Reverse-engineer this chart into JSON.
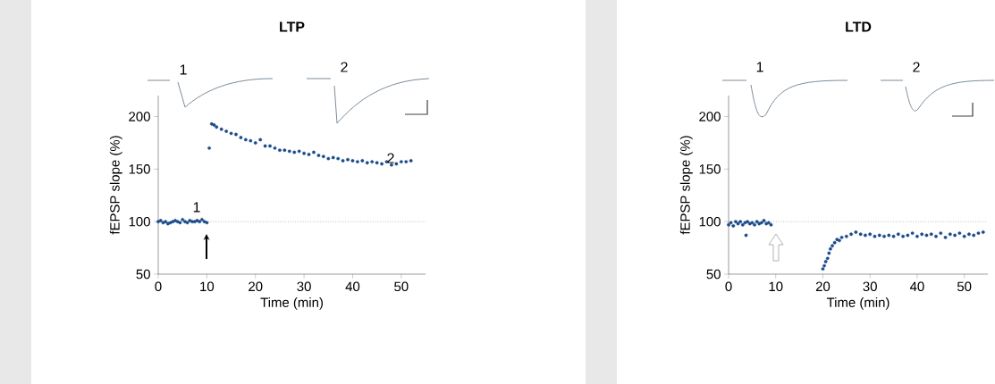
{
  "chart_data": [
    {
      "type": "scatter",
      "title": "LTP",
      "xlabel": "Time (min)",
      "ylabel": "fEPSP slope (%)",
      "marker": "circle",
      "xlim": [
        0,
        55
      ],
      "ylim": [
        50,
        220
      ],
      "xticks": [
        0,
        10,
        20,
        30,
        40,
        50
      ],
      "yticks": [
        50,
        100,
        150,
        200
      ],
      "ref_lines": [
        {
          "axis": "y",
          "value": 100,
          "color": "#999999",
          "line_style": "dotted"
        }
      ],
      "annotations": [
        "1",
        "2",
        "1",
        "2"
      ],
      "series": [
        {
          "color": "#1a4a8a",
          "x": [
            0,
            0.5,
            1,
            1.5,
            2,
            2.5,
            3,
            3.5,
            4,
            4.5,
            5,
            5.5,
            6,
            6.5,
            7,
            7.5,
            8,
            8.5,
            9,
            9.5,
            10,
            10.5,
            11,
            11.5,
            12,
            13,
            14,
            15,
            16,
            17,
            18,
            19,
            20,
            21,
            22,
            23,
            24,
            25,
            26,
            27,
            28,
            29,
            30,
            31,
            32,
            33,
            34,
            35,
            36,
            37,
            38,
            39,
            40,
            41,
            42,
            43,
            44,
            45,
            46,
            47,
            48,
            49,
            50,
            51,
            52
          ],
          "values": [
            100,
            101,
            99,
            100,
            98,
            99,
            100,
            101,
            100,
            99,
            102,
            100,
            99,
            101,
            100,
            100,
            101,
            100,
            102,
            100,
            99,
            170,
            193,
            192,
            190,
            188,
            186,
            184,
            183,
            180,
            178,
            177,
            175,
            178,
            172,
            172,
            170,
            168,
            168,
            167,
            166,
            167,
            165,
            164,
            166,
            163,
            162,
            160,
            161,
            160,
            158,
            159,
            158,
            157,
            158,
            156,
            157,
            156,
            155,
            157,
            154,
            155,
            157,
            157,
            158
          ]
        }
      ]
    },
    {
      "type": "scatter",
      "title": "LTD",
      "xlabel": "Time (min)",
      "ylabel": "fEPSP slope (%)",
      "marker": "circle",
      "xlim": [
        0,
        55
      ],
      "ylim": [
        50,
        220
      ],
      "xticks": [
        0,
        10,
        20,
        30,
        40,
        50
      ],
      "yticks": [
        50,
        100,
        150,
        200
      ],
      "ref_lines": [
        {
          "axis": "y",
          "value": 100,
          "color": "#999999",
          "line_style": "dotted"
        }
      ],
      "annotations": [
        "1",
        "2"
      ],
      "series": [
        {
          "color": "#1a4a8a",
          "x": [
            0,
            0.5,
            1,
            1.5,
            2,
            2.5,
            3,
            3.5,
            3.7,
            4,
            4.5,
            5,
            5.5,
            6,
            6.5,
            7,
            7.5,
            8,
            8.5,
            9,
            20,
            20.3,
            20.6,
            21,
            21.3,
            21.6,
            22,
            22.5,
            23,
            23.5,
            24,
            25,
            26,
            27,
            28,
            29,
            30,
            31,
            32,
            33,
            34,
            35,
            36,
            37,
            38,
            39,
            40,
            41,
            42,
            43,
            44,
            45,
            46,
            47,
            48,
            49,
            50,
            51,
            52,
            53,
            54
          ],
          "values": [
            97,
            99,
            96,
            100,
            98,
            100,
            97,
            99,
            87,
            100,
            98,
            99,
            97,
            100,
            98,
            99,
            101,
            98,
            99,
            97,
            55,
            58,
            62,
            65,
            70,
            74,
            77,
            80,
            83,
            82,
            85,
            86,
            88,
            90,
            88,
            87,
            88,
            86,
            87,
            86,
            87,
            86,
            88,
            86,
            87,
            89,
            86,
            88,
            87,
            88,
            86,
            89,
            85,
            88,
            87,
            89,
            86,
            88,
            87,
            89,
            90
          ]
        }
      ]
    }
  ]
}
